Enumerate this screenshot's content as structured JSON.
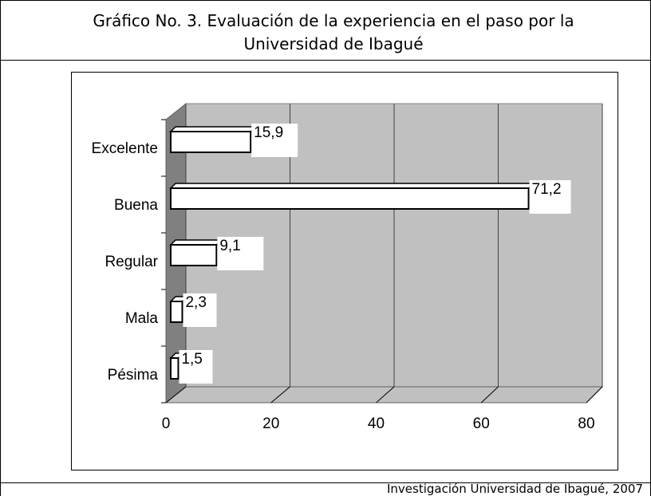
{
  "chart_data": {
    "type": "bar",
    "orientation": "horizontal",
    "title_lines": [
      "Gráfico No. 3. Evaluación de la experiencia en el paso por la",
      "Universidad de Ibagué"
    ],
    "categories": [
      "Excelente",
      "Buena",
      "Regular",
      "Mala",
      "Pésima"
    ],
    "values": [
      15.9,
      71.2,
      9.1,
      2.3,
      1.5
    ],
    "value_labels": [
      "15,9",
      "71,2",
      "9,1",
      "2,3",
      "1,5"
    ],
    "color": "#ffffff",
    "xlim": [
      0,
      80
    ],
    "xticks": [
      0,
      20,
      40,
      60,
      80
    ],
    "grid": true,
    "source": "Investigación Universidad de Ibagué, 2007"
  }
}
